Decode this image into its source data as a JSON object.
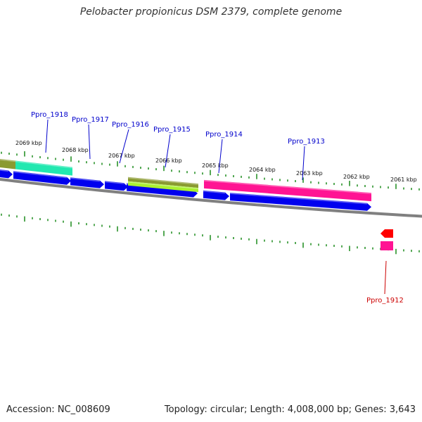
{
  "title": "Pelobacter propionicus DSM 2379, complete genome",
  "footer": {
    "accession": "Accession: NC_008609",
    "summary": "Topology: circular; Length: 4,008,000 bp; Genes: 3,643"
  },
  "colors": {
    "backbone": "#808080",
    "tick": "#1a8a1a",
    "label_forward": "#0000cc",
    "label_reverse": "#cc0000",
    "cds_blue": "#0000ee",
    "teal": "#22e8b0",
    "olive": "#8a9a30",
    "lime": "#aaf030",
    "magenta": "#ff1493",
    "red": "#ff0000",
    "leader": "#0000cc",
    "leader_reverse": "#cc0000"
  },
  "scale_labels": [
    "2069 kbp",
    "2068 kbp",
    "2067 kbp",
    "2066 kbp",
    "2065 kbp",
    "2064 kbp",
    "2063 kbp",
    "2062 kbp",
    "2061 kbp"
  ],
  "genes": [
    {
      "name": "Ppro_1918",
      "strand": "forward"
    },
    {
      "name": "Ppro_1917",
      "strand": "forward"
    },
    {
      "name": "Ppro_1916",
      "strand": "forward"
    },
    {
      "name": "Ppro_1915",
      "strand": "forward"
    },
    {
      "name": "Ppro_1914",
      "strand": "forward"
    },
    {
      "name": "Ppro_1913",
      "strand": "forward"
    },
    {
      "name": "Ppro_1912",
      "strand": "reverse"
    }
  ]
}
